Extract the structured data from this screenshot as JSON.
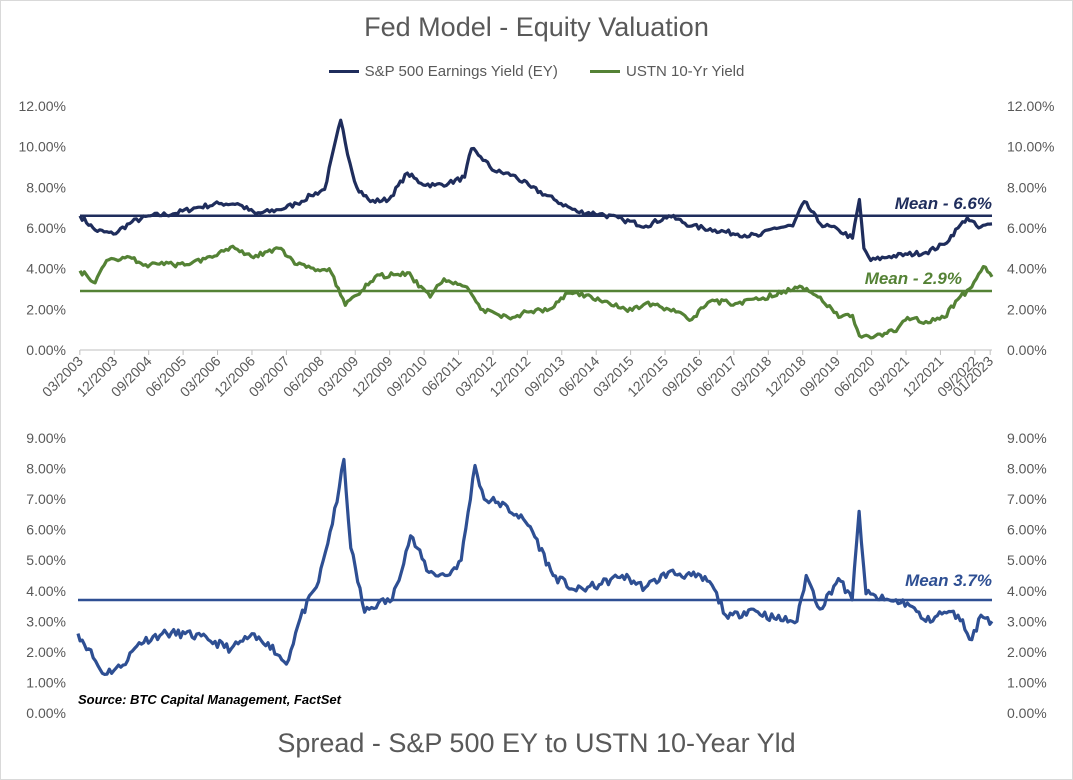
{
  "colors": {
    "ey": "#1f2d5c",
    "ust": "#548235",
    "spread": "#2e4f93",
    "axis": "#595959"
  },
  "top_title": "Fed Model - Equity Valuation",
  "bottom_title": "Spread - S&P 500 EY to USTN 10-Year Yld",
  "source": "Source: BTC Capital Management, FactSet",
  "chart_data": [
    {
      "type": "line",
      "title": "Fed Model - Equity Valuation",
      "ylim": [
        0,
        12
      ],
      "yticks": [
        "0.00%",
        "2.00%",
        "4.00%",
        "6.00%",
        "8.00%",
        "10.00%",
        "12.00%"
      ],
      "secondary_yticks": [
        "0.00%",
        "2.00%",
        "4.00%",
        "6.00%",
        "8.00%",
        "10.00%",
        "12.00%"
      ],
      "x_ticks": [
        "03/2003",
        "12/2003",
        "09/2004",
        "06/2005",
        "03/2006",
        "12/2006",
        "09/2007",
        "06/2008",
        "03/2009",
        "12/2009",
        "09/2010",
        "06/2011",
        "03/2012",
        "12/2012",
        "09/2013",
        "06/2014",
        "03/2015",
        "12/2015",
        "09/2016",
        "06/2017",
        "03/2018",
        "12/2018",
        "09/2019",
        "06/2020",
        "03/2021",
        "12/2021",
        "09/2022",
        "01/2023"
      ],
      "x_range": [
        2003.17,
        2023.04
      ],
      "legend_position": "top",
      "grid": false,
      "series": [
        {
          "name": "S&P 500 Earnings Yield (EY)",
          "color": "#1f2d5c",
          "x": [
            2003.17,
            2003.5,
            2003.9,
            2004.3,
            2004.7,
            2005.2,
            2005.7,
            2006.2,
            2006.6,
            2007.0,
            2007.5,
            2007.9,
            2008.2,
            2008.5,
            2008.85,
            2009.05,
            2009.2,
            2009.5,
            2009.9,
            2010.3,
            2010.6,
            2010.9,
            2011.2,
            2011.55,
            2011.7,
            2011.9,
            2012.2,
            2012.6,
            2013.0,
            2013.5,
            2014.0,
            2014.5,
            2015.0,
            2015.5,
            2016.0,
            2016.5,
            2017.0,
            2017.5,
            2017.95,
            2018.3,
            2018.7,
            2018.95,
            2019.3,
            2019.7,
            2020.0,
            2020.15,
            2020.25,
            2020.4,
            2020.8,
            2021.2,
            2021.6,
            2022.0,
            2022.3,
            2022.5,
            2022.75,
            2023.04
          ],
          "values": [
            6.6,
            5.9,
            5.7,
            6.3,
            6.6,
            6.7,
            7.0,
            7.2,
            7.2,
            6.7,
            6.9,
            7.2,
            7.6,
            7.9,
            11.3,
            9.2,
            8.0,
            7.3,
            7.4,
            8.7,
            8.2,
            8.1,
            8.2,
            8.5,
            9.9,
            9.5,
            8.8,
            8.6,
            8.0,
            7.4,
            6.8,
            6.7,
            6.4,
            6.1,
            6.6,
            6.1,
            5.9,
            5.7,
            5.6,
            6.0,
            6.1,
            7.3,
            6.2,
            5.9,
            5.5,
            7.4,
            5.0,
            4.4,
            4.6,
            4.7,
            4.8,
            5.2,
            6.0,
            6.5,
            6.0,
            6.2
          ]
        },
        {
          "name": "USTN 10-Yr Yield",
          "color": "#548235",
          "x": [
            2003.17,
            2003.5,
            2003.75,
            2004.2,
            2004.6,
            2005.0,
            2005.5,
            2006.0,
            2006.5,
            2006.9,
            2007.5,
            2007.9,
            2008.3,
            2008.6,
            2008.95,
            2009.3,
            2009.6,
            2010.0,
            2010.3,
            2010.8,
            2011.1,
            2011.6,
            2011.9,
            2012.5,
            2013.0,
            2013.4,
            2013.8,
            2014.2,
            2014.6,
            2015.1,
            2015.5,
            2016.0,
            2016.5,
            2016.9,
            2017.5,
            2018.0,
            2018.5,
            2018.9,
            2019.3,
            2019.7,
            2020.0,
            2020.15,
            2020.5,
            2020.9,
            2021.2,
            2021.6,
            2022.0,
            2022.3,
            2022.6,
            2022.85,
            2023.04
          ],
          "values": [
            3.9,
            3.3,
            4.4,
            4.6,
            4.2,
            4.2,
            4.2,
            4.6,
            5.1,
            4.6,
            5.0,
            4.2,
            3.9,
            4.0,
            2.2,
            2.9,
            3.6,
            3.7,
            3.8,
            2.6,
            3.5,
            3.1,
            2.0,
            1.6,
            1.9,
            2.0,
            2.8,
            2.7,
            2.4,
            1.9,
            2.3,
            2.0,
            1.5,
            2.4,
            2.3,
            2.5,
            2.9,
            3.1,
            2.6,
            1.6,
            1.7,
            0.7,
            0.7,
            0.9,
            1.6,
            1.4,
            1.6,
            2.5,
            3.1,
            4.1,
            3.6
          ]
        }
      ],
      "annotations": [
        {
          "label": "Mean - 6.6%",
          "value": 6.6,
          "color": "#1f2d5c"
        },
        {
          "label": "Mean - 2.9%",
          "value": 2.9,
          "color": "#548235"
        }
      ]
    },
    {
      "type": "line",
      "title": "Spread - S&P 500 EY to USTN 10-Year Yld",
      "ylim": [
        0,
        9
      ],
      "yticks": [
        "0.00%",
        "1.00%",
        "2.00%",
        "3.00%",
        "4.00%",
        "5.00%",
        "6.00%",
        "7.00%",
        "8.00%",
        "9.00%"
      ],
      "secondary_yticks": [
        "0.00%",
        "1.00%",
        "2.00%",
        "3.00%",
        "4.00%",
        "5.00%",
        "6.00%",
        "7.00%",
        "8.00%",
        "9.00%"
      ],
      "x_range": [
        2003.17,
        2023.04
      ],
      "grid": false,
      "series": [
        {
          "color": "#2e4f93",
          "x": [
            2003.17,
            2003.4,
            2003.7,
            2004.1,
            2004.5,
            2005.0,
            2005.5,
            2006.0,
            2006.5,
            2006.9,
            2007.3,
            2007.7,
            2008.0,
            2008.4,
            2008.8,
            2008.95,
            2009.1,
            2009.4,
            2009.7,
            2010.0,
            2010.4,
            2010.8,
            2011.2,
            2011.5,
            2011.8,
            2012.0,
            2012.3,
            2012.7,
            2013.0,
            2013.5,
            2014.0,
            2014.5,
            2015.0,
            2015.5,
            2016.0,
            2016.5,
            2016.9,
            2017.3,
            2017.8,
            2018.3,
            2018.8,
            2019.0,
            2019.3,
            2019.7,
            2020.0,
            2020.15,
            2020.3,
            2020.7,
            2021.2,
            2021.6,
            2022.0,
            2022.3,
            2022.6,
            2022.8,
            2023.04
          ],
          "values": [
            2.6,
            2.1,
            1.3,
            1.5,
            2.3,
            2.6,
            2.6,
            2.4,
            2.1,
            2.5,
            2.3,
            1.6,
            3.1,
            4.3,
            6.9,
            8.3,
            5.4,
            3.3,
            3.6,
            3.7,
            5.8,
            4.6,
            4.5,
            5.0,
            8.1,
            7.0,
            6.9,
            6.5,
            6.1,
            4.5,
            4.0,
            4.2,
            4.5,
            4.1,
            4.6,
            4.5,
            4.3,
            3.1,
            3.4,
            3.1,
            3.0,
            4.5,
            3.4,
            4.4,
            3.7,
            6.6,
            3.9,
            3.7,
            3.6,
            3.0,
            3.3,
            3.2,
            2.4,
            3.2,
            3.0
          ]
        }
      ],
      "annotations": [
        {
          "label": "Mean 3.7%",
          "value": 3.7,
          "color": "#2e4f93"
        }
      ]
    }
  ]
}
